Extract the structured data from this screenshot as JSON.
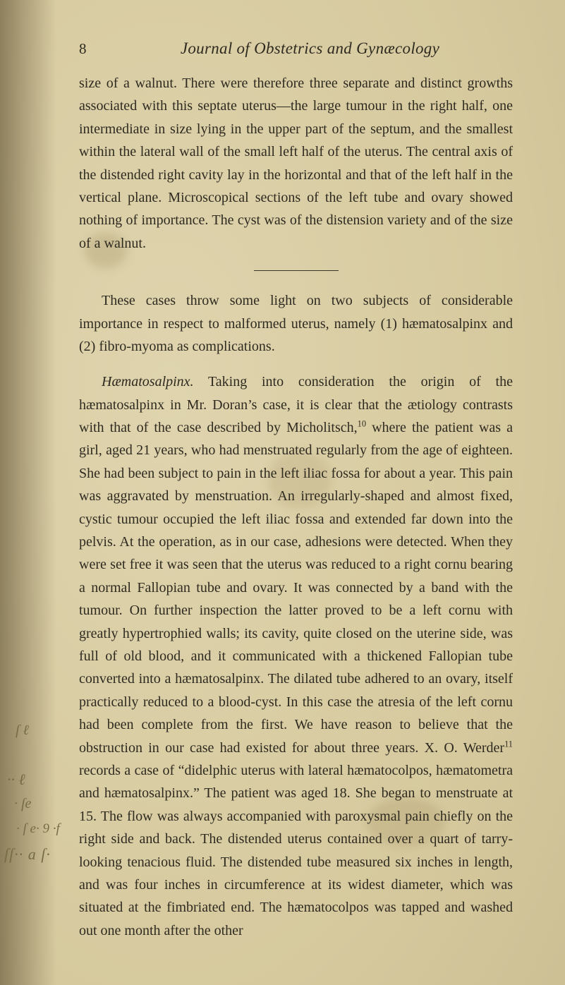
{
  "page": {
    "number": "8",
    "running_head": "Journal of Obstetrics and Gynæcology",
    "background_color": "#d6c99e",
    "text_color": "#2e2a20",
    "rule_color": "#3b3628",
    "body_font_size_pt": 15,
    "line_height": 1.62
  },
  "paragraphs": {
    "p1": "size of a walnut. There were therefore three separate and distinct growths associated with this septate uterus—the large tumour in the right half, one intermediate in size lying in the upper part of the septum, and the smallest within the lateral wall of the small left half of the uterus. The central axis of the distended right cavity lay in the horizontal and that of the left half in the vertical plane. Microscopical sections of the left tube and ovary showed nothing of importance. The cyst was of the distension variety and of the size of a walnut.",
    "p2": "These cases throw some light on two subjects of considerable importance in respect to malformed uterus, namely (1) hæmato­salpinx and (2) fibro-myoma as complications.",
    "p3_lead_italic": "Hæmatosalpinx.",
    "p3_rest_a": " Taking into consideration the origin of the hæmatosalpinx in Mr. Doran’s case, it is clear that the ætiology contrasts with that of the case described by Micholitsch,",
    "p3_sup1": "10",
    "p3_rest_b": " where the patient was a girl, aged 21 years, who had menstruated regularly from the age of eighteen. She had been subject to pain in the left iliac fossa for about a year. This pain was aggravated by menstruation. An irregularly-shaped and almost fixed, cystic tumour occupied the left iliac fossa and extended far down into the pelvis. At the operation, as in our case, adhesions were detected. When they were set free it was seen that the uterus was reduced to a right cornu bearing a normal Fallopian tube and ovary. It was connected by a band with the tumour. On further inspection the latter proved to be a left cornu with greatly hypertrophied walls; its cavity, quite closed on the uterine side, was full of old blood, and it communicated with a thickened Fallopian tube converted into a hæmatosalpinx. The dilated tube adhered to an ovary, itself practically reduced to a blood-cyst. In this case the atresia of the left cornu had been complete from the first. We have reason to believe that the obstruction in our case had existed for about three years. X. O. Werder",
    "p3_sup2": "11",
    "p3_rest_c": " records a case of “didelphic uterus with lateral hæmatocolpos, hæmatometra and hæmatosalpinx.” The patient was aged 18. She began to menstruate at 15. The flow was always accompanied with paroxysmal pain chiefly on the right side and back. The distended uterus contained over a quart of tarry-looking tenacious fluid. The distended tube measured six inches in length, and was four inches in circumference at its widest diameter, which was situated at the fimbriated end. The hæmato­colpos was tapped and washed out one month after the other"
  },
  "marginalia": {
    "m1": "ſ ℓ",
    "m2": "·· ℓ",
    "m3": "· ſe",
    "m4": "· ſ e· 9 ·f",
    "m5": "ſſ·· a ſ·"
  }
}
